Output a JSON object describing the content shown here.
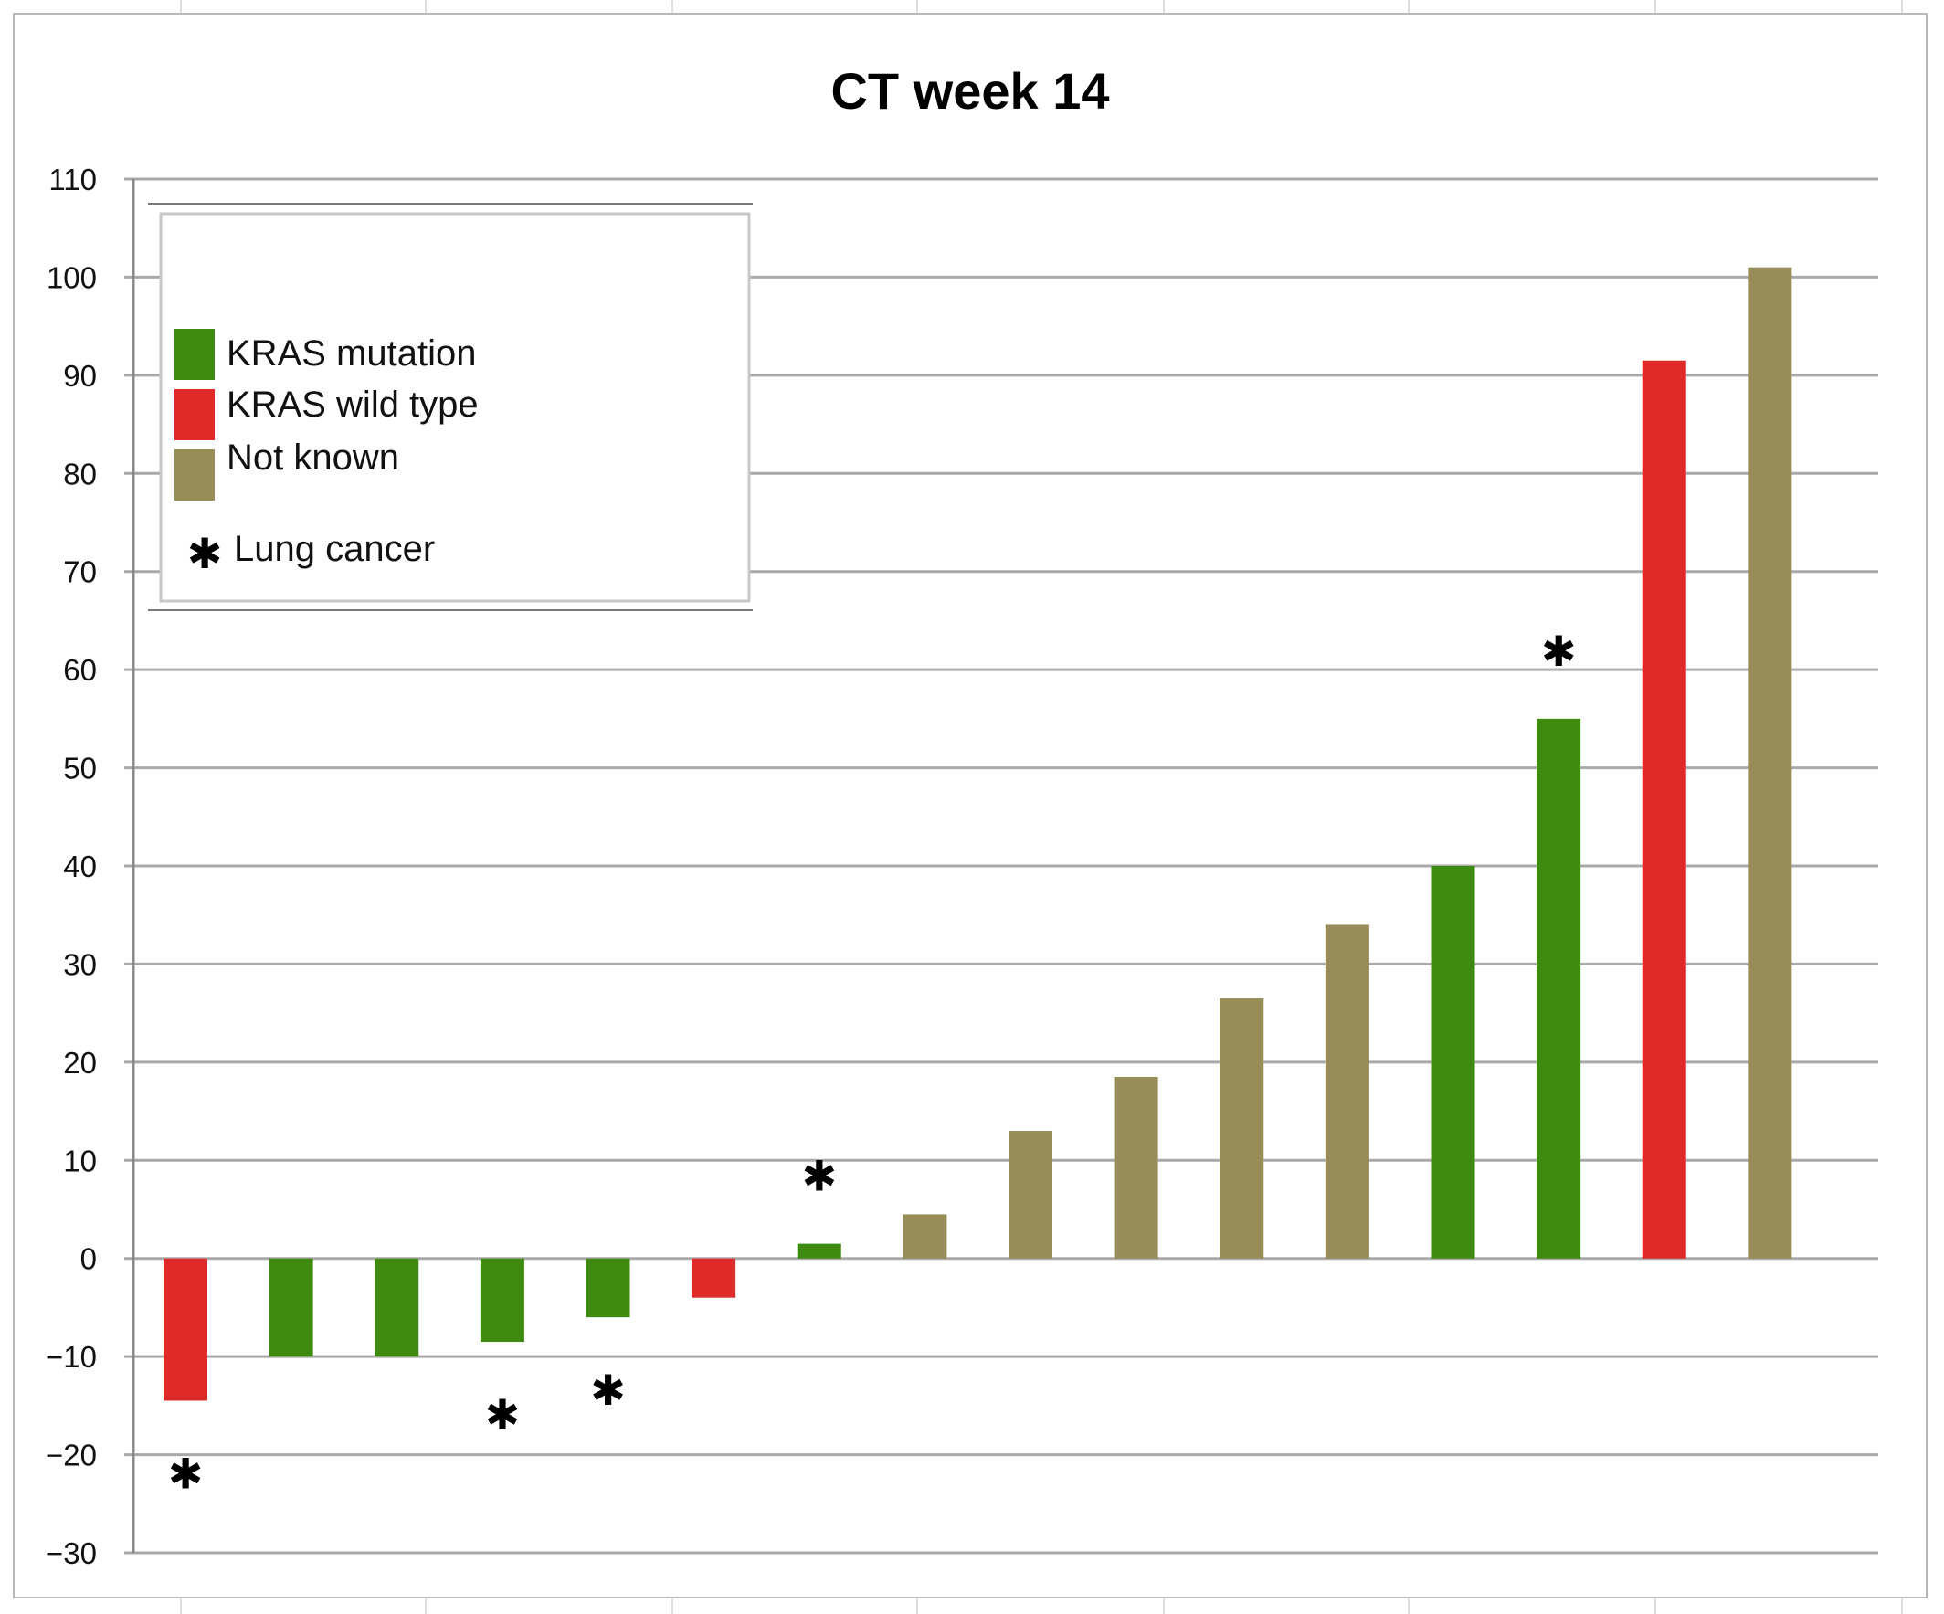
{
  "chart_data": {
    "type": "bar",
    "title": "CT week 14",
    "xlabel": "",
    "ylabel": "",
    "ylim": [
      -30,
      110
    ],
    "yticks": [
      110,
      100,
      90,
      80,
      70,
      60,
      50,
      40,
      30,
      20,
      10,
      0,
      -10,
      -20,
      -30
    ],
    "ytick_labels": [
      "110",
      "100",
      "90",
      "80",
      "70",
      "60",
      "50",
      "40",
      "30",
      "20",
      "10",
      "0",
      "−10",
      "−20",
      "−30"
    ],
    "grid": true,
    "legend_position": "top-left",
    "legend": [
      {
        "label": "KRAS mutation",
        "color": "#3f8a10"
      },
      {
        "label": "KRAS wild type",
        "color": "#e02a2a"
      },
      {
        "label": "Not known",
        "color": "#968d58"
      }
    ],
    "annotation_legend": {
      "symbol": "✱",
      "label": "Lung cancer"
    },
    "bars": [
      {
        "value": -14.5,
        "group": "KRAS wild type",
        "marker": "✱"
      },
      {
        "value": -10,
        "group": "KRAS mutation",
        "marker": ""
      },
      {
        "value": -10,
        "group": "KRAS mutation",
        "marker": ""
      },
      {
        "value": -8.5,
        "group": "KRAS mutation",
        "marker": "✱"
      },
      {
        "value": -6,
        "group": "KRAS mutation",
        "marker": "✱"
      },
      {
        "value": -4,
        "group": "KRAS wild type",
        "marker": ""
      },
      {
        "value": 1.5,
        "group": "KRAS mutation",
        "marker": "✱"
      },
      {
        "value": 4.5,
        "group": "Not known",
        "marker": ""
      },
      {
        "value": 13,
        "group": "Not known",
        "marker": ""
      },
      {
        "value": 18.5,
        "group": "Not known",
        "marker": ""
      },
      {
        "value": 26.5,
        "group": "Not known",
        "marker": ""
      },
      {
        "value": 34,
        "group": "Not known",
        "marker": ""
      },
      {
        "value": 40,
        "group": "KRAS mutation",
        "marker": ""
      },
      {
        "value": 55,
        "group": "KRAS mutation",
        "marker": "✱"
      },
      {
        "value": 91.5,
        "group": "KRAS wild type",
        "marker": ""
      },
      {
        "value": 101,
        "group": "Not known",
        "marker": ""
      }
    ]
  }
}
